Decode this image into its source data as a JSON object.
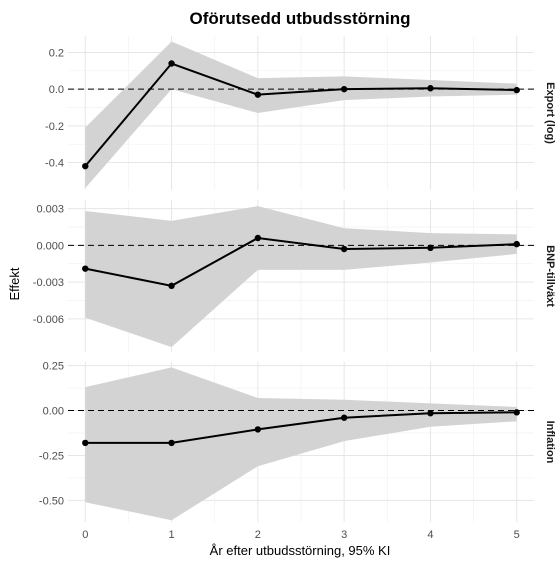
{
  "chart_data": {
    "type": "line",
    "title": "Oförutsedd utbudsstörning",
    "xlabel": "År efter utbudsstörning, 95% KI",
    "ylabel": "Effekt",
    "x": [
      0,
      1,
      2,
      3,
      4,
      5
    ],
    "x_ticks": [
      "0",
      "1",
      "2",
      "3",
      "4",
      "5"
    ],
    "xlim": [
      -0.2,
      5.2
    ],
    "grid": true,
    "reference_line": 0,
    "panels": [
      {
        "name": "Export (log)",
        "y": [
          -0.42,
          0.14,
          -0.03,
          0.0,
          0.005,
          -0.005
        ],
        "lower": [
          -0.54,
          0.0,
          -0.13,
          -0.06,
          -0.04,
          -0.03
        ],
        "upper": [
          -0.21,
          0.26,
          0.06,
          0.07,
          0.05,
          0.03
        ],
        "ylim": [
          -0.55,
          0.29
        ],
        "y_ticks": [
          0.2,
          0.0,
          -0.2,
          -0.4
        ],
        "y_tick_labels": [
          "0.2",
          "0.0",
          "-0.2",
          "-0.4"
        ]
      },
      {
        "name": "BNP-tillväxt",
        "y": [
          -0.0019,
          -0.0033,
          0.0006,
          -0.0003,
          -0.0002,
          0.0001
        ],
        "lower": [
          -0.0059,
          -0.0083,
          -0.002,
          -0.002,
          -0.0014,
          -0.0007
        ],
        "upper": [
          0.0028,
          0.002,
          0.0032,
          0.0014,
          0.001,
          0.0009
        ],
        "ylim": [
          -0.0087,
          0.0037
        ],
        "y_ticks": [
          0.003,
          0.0,
          -0.003,
          -0.006
        ],
        "y_tick_labels": [
          "0.003",
          "0.000",
          "-0.003",
          "-0.006"
        ]
      },
      {
        "name": "Inflation",
        "y": [
          -0.18,
          -0.18,
          -0.105,
          -0.04,
          -0.015,
          -0.01
        ],
        "lower": [
          -0.51,
          -0.61,
          -0.31,
          -0.17,
          -0.09,
          -0.06
        ],
        "upper": [
          0.13,
          0.24,
          0.07,
          0.06,
          0.04,
          0.02
        ],
        "ylim": [
          -0.62,
          0.27
        ],
        "y_ticks": [
          0.25,
          0.0,
          -0.25,
          -0.5
        ],
        "y_tick_labels": [
          "0.25",
          "0.00",
          "-0.25",
          "-0.50"
        ]
      }
    ]
  }
}
